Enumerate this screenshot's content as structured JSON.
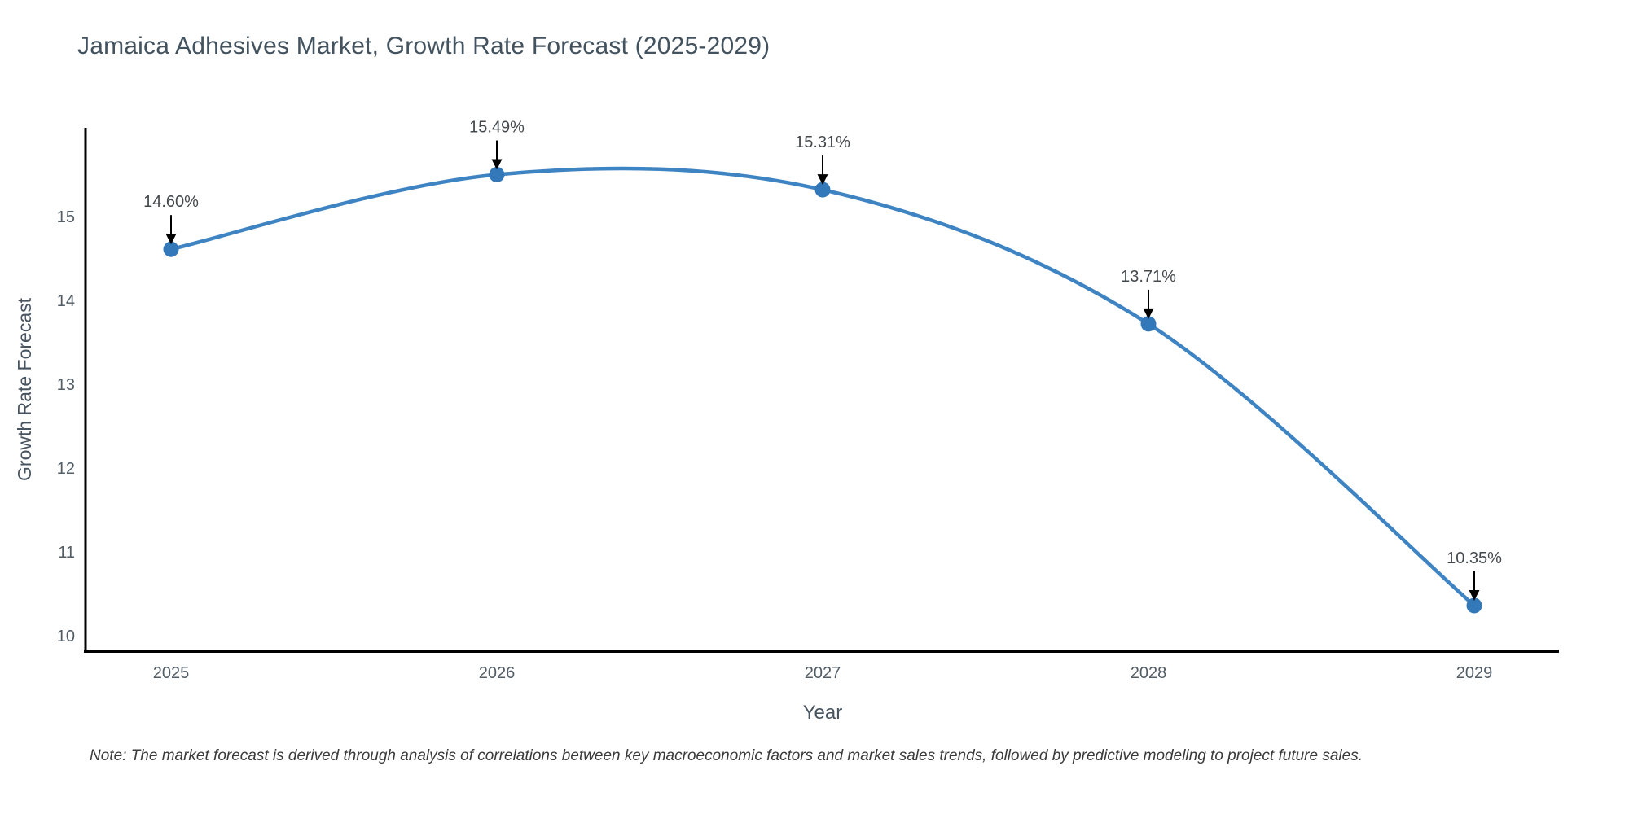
{
  "title": "Jamaica Adhesives Market, Growth Rate Forecast (2025-2029)",
  "note": "Note: The market forecast is derived through analysis of correlations between key macroeconomic factors and market sales trends, followed by predictive modeling to project future sales.",
  "chart_data": {
    "type": "line",
    "line_shape": "spline",
    "title": "Jamaica Adhesives Market, Growth Rate Forecast (2025-2029)",
    "xlabel": "Year",
    "ylabel": "Growth Rate Forecast",
    "categories": [
      "2025",
      "2026",
      "2027",
      "2028",
      "2029"
    ],
    "series": [
      {
        "name": "Growth Rate Forecast",
        "values": [
          14.6,
          15.49,
          15.31,
          13.71,
          10.35
        ]
      }
    ],
    "annotations": [
      "14.60%",
      "15.49%",
      "15.31%",
      "13.71%",
      "10.35%"
    ],
    "yticks": [
      15,
      14,
      13,
      12,
      11,
      10
    ],
    "xticks": [
      "2025",
      "2026",
      "2027",
      "2028",
      "2029"
    ],
    "ylim": [
      9.85,
      15.9
    ],
    "grid": false,
    "legend": "none",
    "colors": {
      "line": "#3e83c2",
      "marker": "#3379ba",
      "axis": "#000000",
      "annotation_arrow": "#000000",
      "title_text": "#42525e",
      "tick_text": "#525d66"
    }
  }
}
